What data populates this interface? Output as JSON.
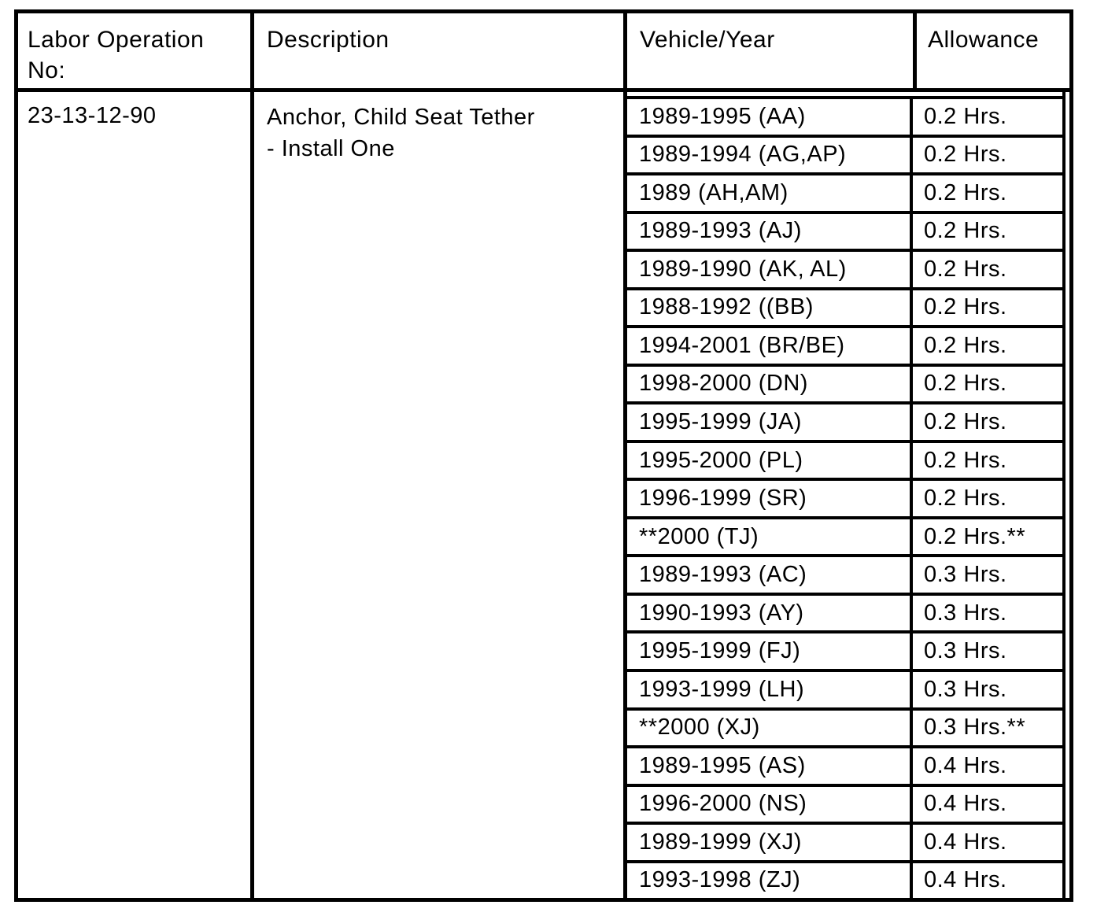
{
  "table": {
    "headers": {
      "labor_op": "Labor Operation No:",
      "description": "Description",
      "vehicle_year": "Vehicle/Year",
      "allowance": "Allowance"
    },
    "labor_operation_no": "23-13-12-90",
    "description_lines": {
      "0": "Anchor, Child Seat Tether",
      "1": "- Install One"
    },
    "rows": [
      {
        "vehicle_year": "1989-1995 (AA)",
        "allowance": "0.2 Hrs."
      },
      {
        "vehicle_year": "1989-1994 (AG,AP)",
        "allowance": "0.2 Hrs."
      },
      {
        "vehicle_year": "1989 (AH,AM)",
        "allowance": "0.2 Hrs."
      },
      {
        "vehicle_year": "1989-1993 (AJ)",
        "allowance": "0.2 Hrs."
      },
      {
        "vehicle_year": "1989-1990 (AK, AL)",
        "allowance": "0.2 Hrs."
      },
      {
        "vehicle_year": "1988-1992 ((BB)",
        "allowance": "0.2 Hrs."
      },
      {
        "vehicle_year": "1994-2001 (BR/BE)",
        "allowance": "0.2 Hrs."
      },
      {
        "vehicle_year": "1998-2000 (DN)",
        "allowance": "0.2 Hrs."
      },
      {
        "vehicle_year": "1995-1999 (JA)",
        "allowance": "0.2 Hrs."
      },
      {
        "vehicle_year": "1995-2000 (PL)",
        "allowance": "0.2 Hrs."
      },
      {
        "vehicle_year": "1996-1999 (SR)",
        "allowance": "0.2 Hrs."
      },
      {
        "vehicle_year": "**2000 (TJ)",
        "allowance": "0.2 Hrs.**"
      },
      {
        "vehicle_year": "1989-1993 (AC)",
        "allowance": "0.3 Hrs."
      },
      {
        "vehicle_year": "1990-1993 (AY)",
        "allowance": "0.3 Hrs."
      },
      {
        "vehicle_year": "1995-1999 (FJ)",
        "allowance": "0.3 Hrs."
      },
      {
        "vehicle_year": "1993-1999 (LH)",
        "allowance": "0.3 Hrs."
      },
      {
        "vehicle_year": "**2000 (XJ)",
        "allowance": "0.3 Hrs.**"
      },
      {
        "vehicle_year": "1989-1995 (AS)",
        "allowance": "0.4 Hrs."
      },
      {
        "vehicle_year": "1996-2000 (NS)",
        "allowance": "0.4 Hrs."
      },
      {
        "vehicle_year": "1989-1999 (XJ)",
        "allowance": "0.4 Hrs."
      },
      {
        "vehicle_year": "1993-1998 (ZJ)",
        "allowance": "0.4 Hrs."
      }
    ]
  }
}
